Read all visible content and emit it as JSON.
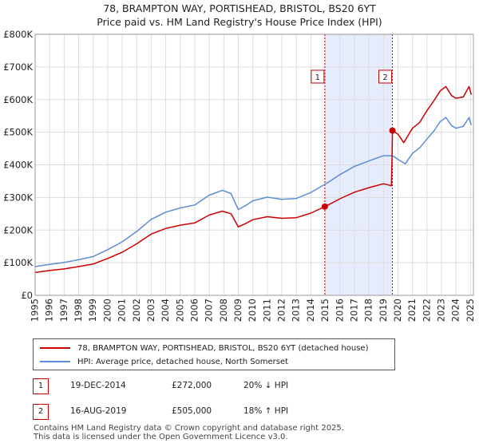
{
  "title_line1": "78, BRAMPTON WAY, PORTISHEAD, BRISTOL, BS20 6YT",
  "title_line2": "Price paid vs. HM Land Registry's House Price Index (HPI)",
  "colors": {
    "property": "#cc0000",
    "hpi": "#5b8ed6",
    "shade": "#e6ecfb",
    "grid": "#dddddd"
  },
  "chart_data": {
    "type": "line",
    "title": "78, BRAMPTON WAY, PORTISHEAD, BRISTOL, BS20 6YT — Price paid vs. HM Land Registry's House Price Index (HPI)",
    "xlim": [
      1995,
      2025.2
    ],
    "ylim": [
      0,
      800000
    ],
    "y_ticks": [
      0,
      100000,
      200000,
      300000,
      400000,
      500000,
      600000,
      700000,
      800000
    ],
    "y_tick_labels": [
      "£0",
      "£100K",
      "£200K",
      "£300K",
      "£400K",
      "£500K",
      "£600K",
      "£700K",
      "£800K"
    ],
    "x_ticks": [
      1995,
      1996,
      1997,
      1998,
      1999,
      2000,
      2001,
      2002,
      2003,
      2004,
      2005,
      2006,
      2007,
      2008,
      2009,
      2010,
      2011,
      2012,
      2013,
      2014,
      2015,
      2016,
      2017,
      2018,
      2019,
      2020,
      2021,
      2022,
      2023,
      2024,
      2025
    ],
    "x_tick_labels": [
      "1995",
      "1996",
      "1997",
      "1998",
      "1999",
      "2000",
      "2001",
      "2002",
      "2003",
      "2004",
      "2005",
      "2006",
      "2007",
      "2008",
      "2009",
      "2010",
      "2011",
      "2012",
      "2013",
      "2014",
      "2015",
      "2016",
      "2017",
      "2018",
      "2019",
      "2020",
      "2021",
      "2022",
      "2023",
      "2024",
      "2025"
    ],
    "shaded_range": [
      2014.96,
      2019.62
    ],
    "series": [
      {
        "name": "78, BRAMPTON WAY, PORTISHEAD, BRISTOL, BS20 6YT (detached house)",
        "color": "#cc0000",
        "x": [
          1995.0,
          1996.0,
          1997.0,
          1998.0,
          1999.0,
          2000.0,
          2001.0,
          2002.0,
          2003.0,
          2004.0,
          2005.0,
          2006.0,
          2007.0,
          2007.9,
          2008.5,
          2009.0,
          2009.5,
          2010.0,
          2011.0,
          2012.0,
          2013.0,
          2014.0,
          2014.96,
          2015.5,
          2016.0,
          2017.0,
          2018.0,
          2019.0,
          2019.55,
          2019.6,
          2019.62,
          2020.0,
          2020.4,
          2021.0,
          2021.5,
          2022.0,
          2022.5,
          2022.9,
          2023.3,
          2023.7,
          2024.0,
          2024.5,
          2024.9,
          2025.05
        ],
        "values": [
          70000,
          76000,
          81000,
          88000,
          96000,
          113000,
          132000,
          158000,
          188000,
          205000,
          215000,
          222000,
          246000,
          258000,
          250000,
          210000,
          220000,
          232000,
          241000,
          236000,
          238000,
          252000,
          272000,
          284000,
          296000,
          316000,
          330000,
          342000,
          336000,
          440000,
          505000,
          494000,
          468000,
          512000,
          530000,
          566000,
          598000,
          626000,
          640000,
          612000,
          604000,
          608000,
          640000,
          615000
        ]
      },
      {
        "name": "HPI: Average price, detached house, North Somerset",
        "color": "#5b8ed6",
        "x": [
          1995.0,
          1996.0,
          1997.0,
          1998.0,
          1999.0,
          2000.0,
          2001.0,
          2002.0,
          2003.0,
          2004.0,
          2005.0,
          2006.0,
          2007.0,
          2007.9,
          2008.5,
          2009.0,
          2009.5,
          2010.0,
          2011.0,
          2012.0,
          2013.0,
          2014.0,
          2014.96,
          2015.5,
          2016.0,
          2017.0,
          2018.0,
          2019.0,
          2019.62,
          2020.0,
          2020.5,
          2021.0,
          2021.5,
          2022.0,
          2022.5,
          2022.9,
          2023.3,
          2023.7,
          2024.0,
          2024.5,
          2024.9,
          2025.05
        ],
        "values": [
          88000,
          95000,
          101000,
          109000,
          119000,
          140000,
          164000,
          196000,
          233000,
          255000,
          268000,
          277000,
          307000,
          322000,
          312000,
          263000,
          275000,
          290000,
          301000,
          294000,
          297000,
          315000,
          340000,
          355000,
          370000,
          395000,
          412000,
          428000,
          428000,
          417000,
          403000,
          435000,
          452000,
          479000,
          505000,
          532000,
          545000,
          520000,
          512000,
          518000,
          545000,
          522000
        ]
      }
    ],
    "sales": [
      {
        "label": "1",
        "date": "19-DEC-2014",
        "x": 2014.96,
        "price": 272000,
        "price_text": "£272,000",
        "hpi_text": "20% ↓ HPI"
      },
      {
        "label": "2",
        "date": "16-AUG-2019",
        "x": 2019.62,
        "price": 505000,
        "price_text": "£505,000",
        "hpi_text": "18% ↑ HPI"
      }
    ]
  },
  "footer_line1": "Contains HM Land Registry data © Crown copyright and database right 2025.",
  "footer_line2": "This data is licensed under the Open Government Licence v3.0."
}
